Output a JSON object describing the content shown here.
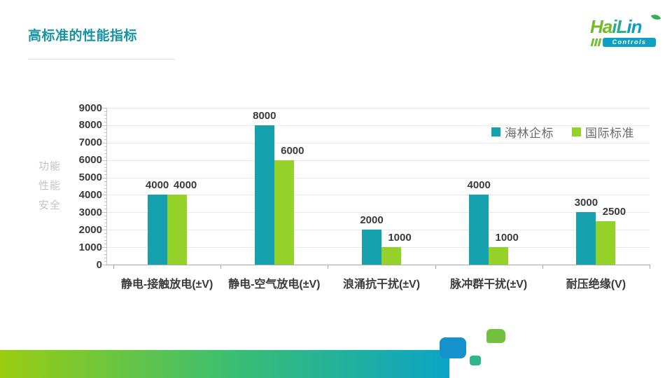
{
  "slide": {
    "title": "高标准的性能指标",
    "title_color": "#1794A4",
    "side_caption": [
      "功能",
      "性能",
      "安全"
    ]
  },
  "logo": {
    "brand": "HaiLin",
    "brand_parts": [
      {
        "text": "Ha",
        "color": "#72BD25"
      },
      {
        "text": "iL",
        "color": "#2BAD8C"
      },
      {
        "text": "in",
        "color": "#0C9FC4"
      }
    ],
    "sub": "Controls",
    "pill_color": "#0CA0C5",
    "bar_color": "#6FBE2D",
    "leaf_color": "#2EB05B"
  },
  "chart_data": {
    "type": "bar",
    "categories": [
      "静电-接触放电(±V)",
      "静电-空气放电(±V)",
      "浪涌抗干扰(±V)",
      "脉冲群干扰(±V)",
      "耐压绝缘(V)"
    ],
    "series": [
      {
        "name": "海林企标",
        "color": "#16A1AE",
        "values": [
          4000,
          8000,
          2000,
          4000,
          3000
        ]
      },
      {
        "name": "国际标准",
        "color": "#95D229",
        "values": [
          4000,
          6000,
          1000,
          1000,
          2500
        ]
      }
    ],
    "ylim": [
      0,
      9000
    ],
    "ytick_interval": 1000,
    "grid": true,
    "legend_position": "top-right",
    "data_labels": true,
    "xlabel": "",
    "ylabel": ""
  },
  "decor": {
    "bar_gradient": [
      "#9BCC10",
      "#3ABE72",
      "#0BA4C5"
    ],
    "squares": [
      {
        "name": "blue-square",
        "color": "#1591CB"
      },
      {
        "name": "teal-square",
        "color": "#2FB58C"
      },
      {
        "name": "green-square",
        "color": "#73C13E"
      }
    ]
  }
}
